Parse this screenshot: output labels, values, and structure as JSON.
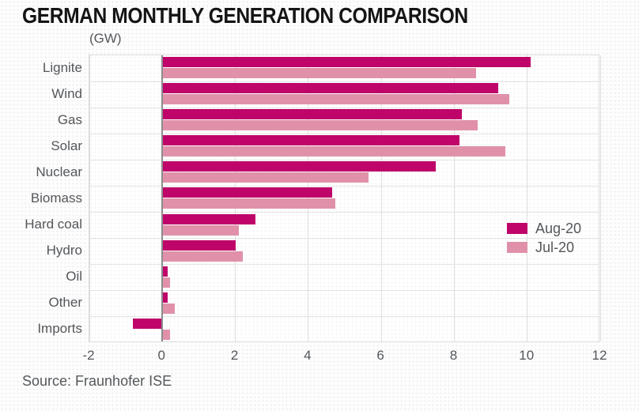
{
  "title": "GERMAN MONTHLY GENERATION COMPARISON",
  "unit_label": "(GW)",
  "source": "Source: Fraunhofer ISE",
  "colors": {
    "aug_series": "#bf0569",
    "jul_series": "#e091a9",
    "title_text": "#151515",
    "axis_text": "#54575b",
    "grid_line": "#dedede",
    "zero_line": "#8c8c8c",
    "plot_background": "#ffffff"
  },
  "chart_data": {
    "type": "bar",
    "orientation": "horizontal",
    "title": "GERMAN MONTHLY GENERATION COMPARISON",
    "xlabel": "",
    "ylabel": "(GW)",
    "categories": [
      "Lignite",
      "Wind",
      "Gas",
      "Solar",
      "Nuclear",
      "Biomass",
      "Hard coal",
      "Hydro",
      "Oil",
      "Other",
      "Imports"
    ],
    "series": [
      {
        "name": "Aug-20",
        "color": "#bf0569",
        "values": [
          10.1,
          9.2,
          8.2,
          8.15,
          7.5,
          4.65,
          2.55,
          2.0,
          0.15,
          0.15,
          -0.8
        ]
      },
      {
        "name": "Jul-20",
        "color": "#e091a9",
        "values": [
          8.6,
          9.5,
          8.65,
          9.4,
          5.65,
          4.75,
          2.1,
          2.2,
          0.2,
          0.35,
          0.2
        ]
      }
    ],
    "xlim": [
      -2,
      12
    ],
    "xticks": [
      -2,
      0,
      2,
      4,
      6,
      8,
      10,
      12
    ],
    "grid": true,
    "legend_position": "middle-right"
  }
}
